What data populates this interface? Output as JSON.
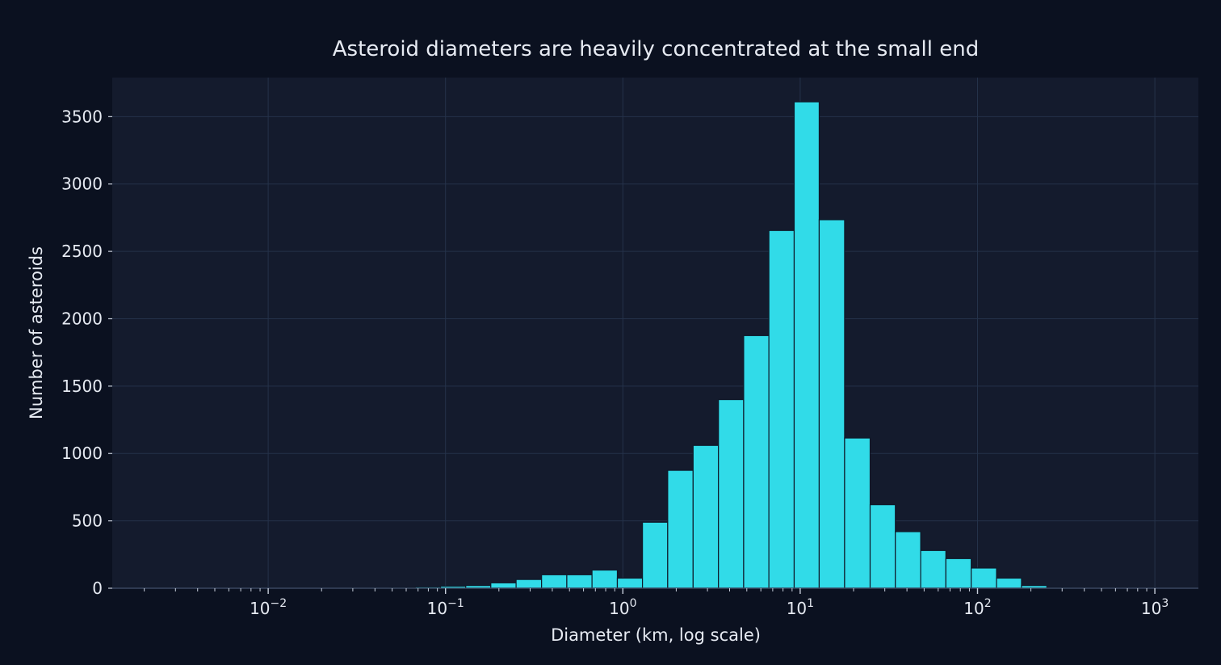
{
  "chart_data": {
    "type": "bar",
    "title": "Asteroid diameters are heavily concentrated at the small end",
    "xlabel": "Diameter (km, log scale)",
    "ylabel": "Number of asteroids",
    "x_scale": "log",
    "xlim": [
      0.00132,
      1760
    ],
    "ylim": [
      0,
      3790
    ],
    "x_ticks": [
      0.01,
      0.1,
      1,
      10,
      100,
      1000
    ],
    "x_tick_labels": [
      {
        "base": "10",
        "exp": "−2"
      },
      {
        "base": "10",
        "exp": "−1"
      },
      {
        "base": "10",
        "exp": "0"
      },
      {
        "base": "10",
        "exp": "1"
      },
      {
        "base": "10",
        "exp": "2"
      },
      {
        "base": "10",
        "exp": "3"
      }
    ],
    "y_ticks": [
      0,
      500,
      1000,
      1500,
      2000,
      2500,
      3000,
      3500
    ],
    "y_tick_labels": [
      "0",
      "500",
      "1000",
      "1500",
      "2000",
      "2500",
      "3000",
      "3500"
    ],
    "grid": true,
    "bin_edges": [
      0.0252,
      0.035,
      0.0486,
      0.0675,
      0.0937,
      0.13,
      0.18,
      0.25,
      0.348,
      0.483,
      0.67,
      0.931,
      1.29,
      1.79,
      2.49,
      3.46,
      4.8,
      6.66,
      9.25,
      12.8,
      17.8,
      24.8,
      34.4,
      47.8,
      66.3,
      92.1,
      128,
      177,
      246,
      342
    ],
    "values": [
      1,
      2,
      5,
      10,
      15,
      20,
      40,
      65,
      100,
      100,
      135,
      75,
      490,
      875,
      1060,
      1400,
      1875,
      2655,
      3610,
      2735,
      1115,
      620,
      420,
      280,
      220,
      150,
      75,
      20,
      3
    ],
    "colors": {
      "background": "#0b1120",
      "plot_background": "#141b2d",
      "bar": "#31dbe8",
      "bar_edge": "#0e1a2a",
      "grid": "#25324a",
      "text": "#e6eaf2"
    }
  }
}
